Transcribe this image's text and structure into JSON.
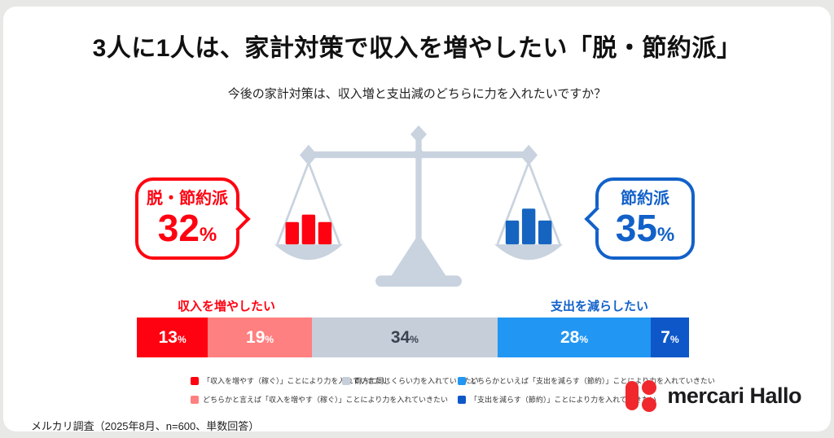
{
  "page": {
    "title": "3人に1人は、家計対策で収入を増やしたい「脱・節約派」",
    "subtitle": "今後の家計対策は、収入増と支出減のどちらに力を入れたいですか？",
    "source_note": "メルカリ調査（2025年8月、n=600、単数回答）",
    "brand_name": "mercari Hallo"
  },
  "colors": {
    "increase_strong": "#ff0211",
    "increase_weak": "#ff8080",
    "neutral_gray": "#c5ced9",
    "decrease_weak": "#2196f3",
    "decrease_strong": "#0d57c9",
    "scale_illustration": "#c9d3df",
    "brand_red": "#f0282d"
  },
  "bubbles": {
    "left": {
      "label": "脱・節約派",
      "value": "32",
      "unit": "%",
      "color": "#ff0211"
    },
    "right": {
      "label": "節約派",
      "value": "35",
      "unit": "%",
      "color": "#1261c9"
    }
  },
  "axis_labels": {
    "left": "収入を増やしたい",
    "right": "支出を減らしたい"
  },
  "chart_data": {
    "type": "bar",
    "stacked": true,
    "orientation": "horizontal",
    "title": "今後の家計対策は、収入増と支出減のどちらに力を入れたいですか？",
    "unit": "%",
    "xlim": [
      0,
      100
    ],
    "segments": [
      {
        "label": "「収入を増やす（稼ぐ）」ことにより力を入れていきたい",
        "value": 13,
        "color": "#ff0211",
        "text_color": "#ffffff"
      },
      {
        "label": "どちらかと言えば「収入を増やす（稼ぐ）」ことにより力を入れていきたい",
        "value": 19,
        "color": "#ff8080",
        "text_color": "#ffffff"
      },
      {
        "label": "両方に同じくらい力を入れていきたい",
        "value": 34,
        "color": "#c5ced9",
        "text_color": "#3a4350"
      },
      {
        "label": "どちらかといえば「支出を減らす（節約）」ことにより力を入れていきたい",
        "value": 28,
        "color": "#2196f3",
        "text_color": "#ffffff"
      },
      {
        "label": "「支出を減らす（節約）」ことにより力を入れていきたい",
        "value": 7,
        "color": "#0d57c9",
        "text_color": "#ffffff"
      }
    ],
    "groups": [
      {
        "label": "収入を増やしたい",
        "total": 32,
        "color": "#ff0211"
      },
      {
        "label": "支出を減らしたい",
        "total": 35,
        "color": "#1261c9"
      }
    ]
  },
  "legend": {
    "items": [
      {
        "color": "#ff0211",
        "label": "「収入を増やす（稼ぐ）」ことにより力を入れていきたい"
      },
      {
        "color": "#c5ced9",
        "label": "両方に同じくらい力を入れていきたい"
      },
      {
        "color": "#2196f3",
        "label": "どちらかといえば「支出を減らす（節約）」ことにより力を入れていきたい"
      },
      {
        "color": "#ff8080",
        "label": "どちらかと言えば「収入を増やす（稼ぐ）」ことにより力を入れていきたい"
      },
      {
        "color": "#0d57c9",
        "label": "「支出を減らす（節約）」ことにより力を入れていきたい"
      }
    ]
  }
}
